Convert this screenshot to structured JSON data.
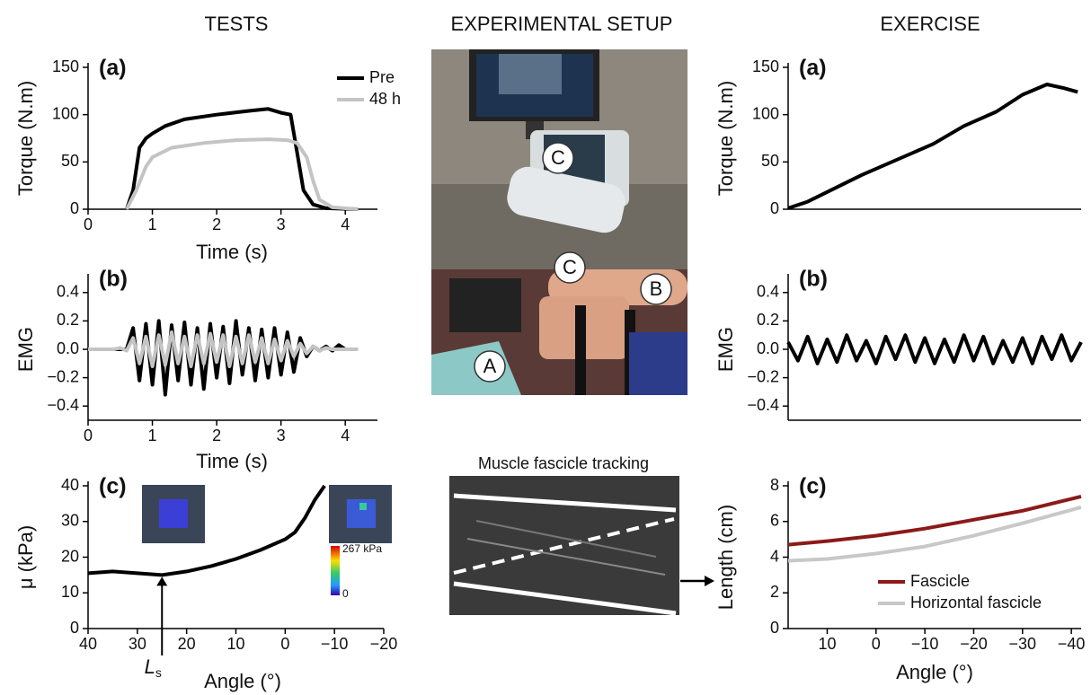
{
  "columns": [
    "TESTS",
    "EXPERIMENTAL SETUP",
    "EXERCISE"
  ],
  "setup": {
    "labels": [
      "C",
      "C",
      "B",
      "A"
    ],
    "tracking_title": "Muscle fascicle tracking"
  },
  "colorbar_labels": [
    "267 kPa",
    "0"
  ],
  "chart_data": [
    {
      "type": "line",
      "panel": "(a)",
      "xlabel": "Time (s)",
      "ylabel": "Torque (N.m)",
      "xlim": [
        0,
        4.5
      ],
      "xticks": [
        0,
        1,
        2,
        3,
        4
      ],
      "ylim": [
        0,
        150
      ],
      "yticks": [
        0,
        50,
        100,
        150
      ],
      "legend": "upper right",
      "series": [
        {
          "name": "Pre",
          "color": "#000000",
          "x": [
            0.6,
            0.7,
            0.8,
            0.9,
            1.0,
            1.2,
            1.5,
            2.0,
            2.5,
            2.8,
            3.0,
            3.15,
            3.25,
            3.35,
            3.5,
            3.7,
            4.2
          ],
          "values": [
            0,
            20,
            65,
            75,
            80,
            88,
            95,
            100,
            104,
            106,
            102,
            100,
            60,
            20,
            5,
            1,
            0
          ]
        },
        {
          "name": "48 h",
          "color": "#c4c4c4",
          "x": [
            0.6,
            0.75,
            0.9,
            1.0,
            1.3,
            1.8,
            2.3,
            2.8,
            3.1,
            3.25,
            3.4,
            3.5,
            3.6,
            3.8,
            4.2
          ],
          "values": [
            0,
            20,
            45,
            55,
            65,
            70,
            73,
            74,
            73,
            70,
            55,
            30,
            10,
            2,
            0
          ]
        }
      ]
    },
    {
      "type": "line",
      "panel": "(b)",
      "xlabel": "Time (s)",
      "ylabel": "EMG",
      "xlim": [
        0,
        4.5
      ],
      "xticks": [
        0,
        1,
        2,
        3,
        4
      ],
      "ylim": [
        -0.5,
        0.5
      ],
      "yticks": [
        {
          "value": -0.4,
          "label": "−0.4"
        },
        {
          "value": -0.2,
          "label": "−0.2"
        },
        {
          "value": 0,
          "label": "0.0"
        },
        0.2,
        0.4
      ],
      "series": [
        {
          "name": "Pre",
          "color": "#000000",
          "x": [
            0,
            0.1,
            0.2,
            0.3,
            0.4,
            0.5,
            0.6,
            0.7,
            0.8,
            0.9,
            1.0,
            1.1,
            1.2,
            1.3,
            1.4,
            1.5,
            1.6,
            1.7,
            1.8,
            1.9,
            2.0,
            2.1,
            2.2,
            2.3,
            2.4,
            2.5,
            2.6,
            2.7,
            2.8,
            2.9,
            3.0,
            3.1,
            3.2,
            3.3,
            3.4,
            3.5,
            3.6,
            3.7,
            3.8,
            3.9,
            4.0,
            4.1,
            4.2
          ],
          "values": [
            0,
            0,
            0,
            0,
            0,
            0,
            0,
            0.15,
            -0.22,
            0.18,
            -0.25,
            0.2,
            -0.32,
            0.17,
            -0.22,
            0.19,
            -0.25,
            0.15,
            -0.28,
            0.18,
            -0.2,
            0.16,
            -0.24,
            0.2,
            -0.18,
            0.15,
            -0.22,
            0.14,
            -0.2,
            0.15,
            -0.18,
            0.12,
            -0.16,
            0.08,
            -0.05,
            0.02,
            -0.01,
            0.02,
            -0.01,
            0.03,
            0,
            0,
            0
          ]
        },
        {
          "name": "48 h",
          "color": "#c4c4c4",
          "x": [
            0,
            0.1,
            0.2,
            0.3,
            0.4,
            0.5,
            0.6,
            0.7,
            0.8,
            0.9,
            1.0,
            1.1,
            1.2,
            1.3,
            1.4,
            1.5,
            1.6,
            1.7,
            1.8,
            1.9,
            2.0,
            2.1,
            2.2,
            2.3,
            2.4,
            2.5,
            2.6,
            2.7,
            2.8,
            2.9,
            3.0,
            3.1,
            3.2,
            3.3,
            3.4,
            3.5,
            3.6,
            3.7,
            3.8,
            3.9,
            4.0,
            4.1,
            4.2
          ],
          "values": [
            0,
            0,
            0,
            0,
            0,
            0.01,
            -0.01,
            0.08,
            -0.1,
            0.09,
            -0.12,
            0.1,
            -0.11,
            0.12,
            -0.1,
            0.09,
            -0.12,
            0.1,
            -0.1,
            0.11,
            -0.09,
            0.1,
            -0.12,
            0.09,
            -0.1,
            0.1,
            -0.09,
            0.08,
            -0.1,
            0.07,
            -0.08,
            0.06,
            -0.05,
            0.04,
            -0.03,
            0.02,
            -0.01,
            0.01,
            0,
            0,
            0,
            0,
            0
          ]
        }
      ]
    },
    {
      "type": "line",
      "panel": "(c)",
      "xlabel": "Angle (°)",
      "ylabel": "μ (kPa)",
      "xlim": [
        40,
        -20
      ],
      "xticks": [
        40,
        30,
        20,
        10,
        0,
        {
          "value": -10,
          "label": "−10"
        },
        {
          "value": -20,
          "label": "−20"
        }
      ],
      "ylim": [
        0,
        40
      ],
      "yticks": [
        0,
        10,
        20,
        30,
        40
      ],
      "annotation": {
        "text": "L",
        "subscript": "s",
        "x": 25,
        "y": 15
      },
      "series": [
        {
          "color": "#000000",
          "x": [
            40,
            35,
            30,
            25,
            20,
            15,
            10,
            5,
            0,
            -2,
            -4,
            -6,
            -8
          ],
          "values": [
            15.5,
            16,
            15.5,
            15,
            16,
            17.5,
            19.5,
            22,
            25,
            27,
            31,
            36,
            40
          ]
        }
      ]
    },
    {
      "type": "line",
      "panel": "(a)",
      "ylabel": "Torque (N.m)",
      "xlim": [
        18,
        -42
      ],
      "ylim": [
        0,
        150
      ],
      "yticks": [
        0,
        50,
        100,
        150
      ],
      "series": [
        {
          "color": "#000000",
          "x": [
            18,
            14,
            3,
            -11.7,
            -18,
            -24.6,
            -30,
            -35,
            -38.5,
            -41.3
          ],
          "values": [
            1,
            8,
            36,
            69,
            88,
            103,
            121,
            132,
            128,
            124
          ]
        }
      ]
    },
    {
      "type": "line",
      "panel": "(b)",
      "ylabel": "EMG",
      "xlim": [
        18,
        -42
      ],
      "ylim": [
        -0.5,
        0.5
      ],
      "yticks": [
        {
          "value": -0.4,
          "label": "−0.4"
        },
        {
          "value": -0.2,
          "label": "−0.2"
        },
        {
          "value": 0,
          "label": "0.0"
        },
        0.2,
        0.4
      ],
      "series": [
        {
          "color": "#000000",
          "x": [
            18,
            16,
            14,
            12,
            10,
            8,
            6,
            4,
            2,
            0,
            -2,
            -4,
            -6,
            -8,
            -10,
            -12,
            -14,
            -16,
            -18,
            -20,
            -22,
            -24,
            -26,
            -28,
            -30,
            -32,
            -34,
            -36,
            -38,
            -40,
            -42
          ],
          "values": [
            0.05,
            -0.08,
            0.09,
            -0.1,
            0.07,
            -0.09,
            0.1,
            -0.08,
            0.06,
            -0.1,
            0.09,
            -0.07,
            0.1,
            -0.09,
            0.08,
            -0.1,
            0.07,
            -0.09,
            0.1,
            -0.08,
            0.09,
            -0.1,
            0.06,
            -0.09,
            0.08,
            -0.1,
            0.09,
            -0.07,
            0.1,
            -0.08,
            0.05
          ]
        }
      ]
    },
    {
      "type": "line",
      "panel": "(c)",
      "xlabel": "Angle (°)",
      "ylabel": "Length (cm)",
      "xlim": [
        18,
        -42
      ],
      "xticks": [
        10,
        0,
        {
          "value": -10,
          "label": "−10"
        },
        {
          "value": -20,
          "label": "−20"
        },
        {
          "value": -30,
          "label": "−30"
        },
        {
          "value": -40,
          "label": "−40"
        }
      ],
      "ylim": [
        0,
        8
      ],
      "yticks": [
        0,
        2,
        4,
        6,
        8
      ],
      "legend": "lower right",
      "series": [
        {
          "name": "Fascicle",
          "color": "#8b1a1a",
          "x": [
            18,
            10,
            0,
            -10,
            -20,
            -30,
            -42
          ],
          "values": [
            4.7,
            4.9,
            5.2,
            5.6,
            6.1,
            6.6,
            7.4
          ]
        },
        {
          "name": "Horizontal fascicle",
          "color": "#c8c8c8",
          "x": [
            18,
            10,
            0,
            -10,
            -20,
            -30,
            -42
          ],
          "values": [
            3.8,
            3.9,
            4.2,
            4.6,
            5.2,
            5.9,
            6.8
          ]
        }
      ]
    }
  ]
}
